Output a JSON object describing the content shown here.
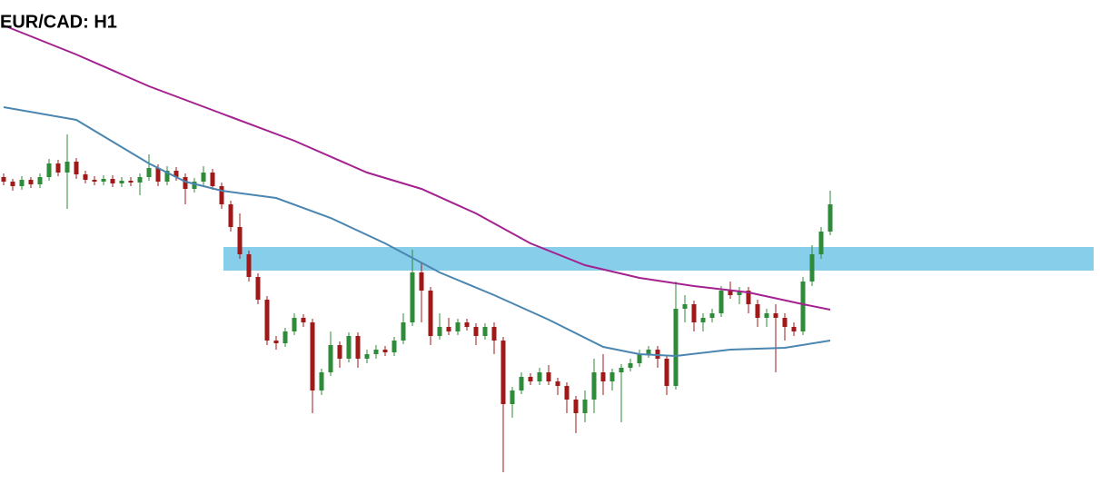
{
  "chart_data": {
    "type": "candlestick",
    "title": "EUR/CAD: H1",
    "ylim": [
      0,
      555
    ],
    "up_color": "#2e8b3a",
    "down_color": "#a01818",
    "open": [
      360,
      355,
      350,
      357,
      352,
      360,
      375,
      365,
      377,
      363,
      357,
      355,
      358,
      353,
      356,
      354,
      360,
      370,
      355,
      367,
      360,
      347,
      355,
      365,
      350,
      330,
      305,
      275,
      250,
      225,
      180,
      177,
      190,
      205,
      200,
      125,
      145,
      175,
      160,
      185,
      160,
      165,
      170,
      167,
      180,
      200,
      255,
      235,
      185,
      195,
      190,
      200,
      195,
      185,
      195,
      180,
      110,
      125,
      140,
      135,
      145,
      135,
      130,
      115,
      100,
      115,
      145,
      135,
      145,
      150,
      155,
      165,
      170,
      160,
      130,
      215,
      220,
      200,
      205,
      210,
      235,
      230,
      235,
      220,
      205,
      210,
      205,
      195,
      190,
      245,
      275,
      300
    ],
    "high": [
      364,
      358,
      361,
      360,
      364,
      380,
      379,
      407,
      381,
      367,
      361,
      362,
      362,
      360,
      360,
      364,
      385,
      374,
      372,
      371,
      364,
      359,
      372,
      369,
      354,
      334,
      320,
      279,
      254,
      229,
      185,
      194,
      210,
      209,
      204,
      149,
      190,
      179,
      189,
      189,
      170,
      175,
      174,
      184,
      210,
      280,
      265,
      239,
      210,
      205,
      204,
      204,
      199,
      199,
      200,
      184,
      129,
      145,
      144,
      150,
      153,
      139,
      134,
      119,
      125,
      160,
      165,
      149,
      154,
      160,
      170,
      174,
      174,
      164,
      245,
      230,
      224,
      210,
      215,
      240,
      245,
      239,
      239,
      225,
      215,
      220,
      210,
      200,
      250,
      285,
      305,
      345
    ],
    "low": [
      351,
      345,
      346,
      348,
      348,
      356,
      361,
      325,
      358,
      353,
      351,
      351,
      349,
      349,
      350,
      340,
      356,
      350,
      351,
      356,
      330,
      343,
      351,
      346,
      325,
      300,
      270,
      245,
      220,
      175,
      170,
      173,
      186,
      195,
      100,
      120,
      141,
      150,
      156,
      150,
      155,
      160,
      163,
      163,
      176,
      196,
      200,
      175,
      181,
      186,
      186,
      191,
      175,
      181,
      165,
      35,
      95,
      121,
      131,
      131,
      131,
      120,
      100,
      78,
      90,
      100,
      120,
      125,
      90,
      146,
      151,
      161,
      150,
      120,
      126,
      200,
      190,
      190,
      200,
      206,
      226,
      220,
      210,
      195,
      195,
      145,
      180,
      185,
      186,
      240,
      270,
      296
    ],
    "close": [
      355,
      350,
      357,
      352,
      360,
      375,
      365,
      377,
      363,
      357,
      355,
      358,
      353,
      356,
      354,
      360,
      370,
      355,
      367,
      360,
      347,
      355,
      365,
      350,
      330,
      305,
      275,
      250,
      225,
      180,
      177,
      190,
      205,
      200,
      125,
      145,
      175,
      160,
      185,
      160,
      165,
      170,
      167,
      180,
      200,
      255,
      235,
      185,
      195,
      190,
      200,
      195,
      185,
      195,
      180,
      110,
      125,
      140,
      135,
      145,
      135,
      130,
      115,
      100,
      115,
      145,
      135,
      145,
      150,
      155,
      165,
      170,
      160,
      130,
      215,
      220,
      200,
      205,
      210,
      235,
      230,
      235,
      220,
      205,
      210,
      205,
      195,
      190,
      245,
      275,
      300,
      330
    ],
    "zone": {
      "low": 257,
      "high": 283,
      "color": "#87ceeb"
    },
    "series": [
      {
        "color": "#4a86b0",
        "x": [
          0,
          8,
          16,
          20,
          24,
          30,
          36,
          42,
          48,
          54,
          60,
          66,
          70,
          74,
          80,
          86,
          91
        ],
        "values": [
          437,
          423,
          375,
          355,
          345,
          337,
          315,
          287,
          255,
          230,
          203,
          173,
          165,
          163,
          170,
          172,
          180
        ]
      },
      {
        "color": "#a3228f",
        "x": [
          0,
          8,
          16,
          24,
          32,
          40,
          46,
          52,
          58,
          64,
          70,
          76,
          82,
          88,
          91
        ],
        "values": [
          527,
          495,
          460,
          430,
          400,
          365,
          347,
          320,
          287,
          263,
          249,
          240,
          233,
          220,
          214
        ]
      }
    ]
  }
}
